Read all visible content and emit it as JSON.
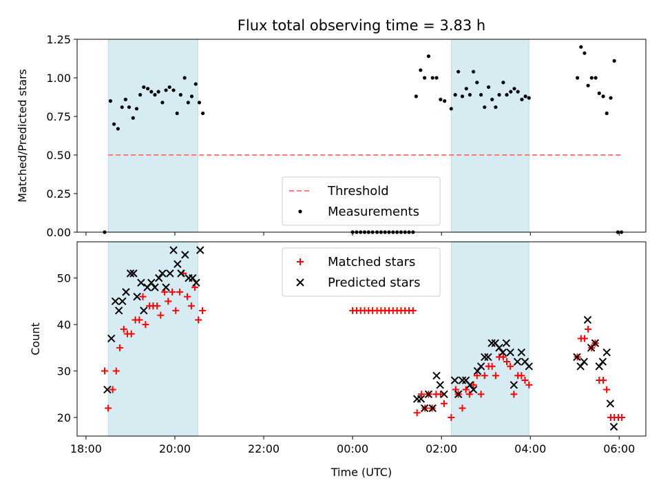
{
  "chart_data": [
    {
      "type": "scatter",
      "title": "Flux total observing time = 3.83 h",
      "xlabel": "",
      "ylabel": "Matched/Predicted stars",
      "xlim": [
        -6.2,
        6.6
      ],
      "ylim": [
        0,
        1.25
      ],
      "yticks": [
        "0.00",
        "0.25",
        "0.50",
        "0.75",
        "1.00",
        "1.25"
      ],
      "shaded_intervals": [
        [
          -5.5,
          -3.48
        ],
        [
          2.22,
          3.97
        ]
      ],
      "threshold": {
        "label": "Threshold",
        "value": 0.5,
        "x_range": [
          -5.5,
          6.05
        ],
        "color": "#ff7777"
      },
      "legend_position": "lower-center",
      "series": [
        {
          "name": "Measurements",
          "marker": "dot",
          "color": "#000000",
          "points": [
            [
              -5.58,
              0.0
            ],
            [
              -5.45,
              0.85
            ],
            [
              -5.37,
              0.7
            ],
            [
              -5.28,
              0.67
            ],
            [
              -5.19,
              0.81
            ],
            [
              -5.11,
              0.86
            ],
            [
              -5.03,
              0.81
            ],
            [
              -4.94,
              0.74
            ],
            [
              -4.86,
              0.8
            ],
            [
              -4.78,
              0.89
            ],
            [
              -4.7,
              0.94
            ],
            [
              -4.61,
              0.93
            ],
            [
              -4.53,
              0.91
            ],
            [
              -4.45,
              0.89
            ],
            [
              -4.37,
              0.91
            ],
            [
              -4.28,
              0.84
            ],
            [
              -4.2,
              0.92
            ],
            [
              -4.12,
              0.94
            ],
            [
              -4.03,
              0.92
            ],
            [
              -3.95,
              0.77
            ],
            [
              -3.87,
              0.89
            ],
            [
              -3.78,
              1.0
            ],
            [
              -3.7,
              0.84
            ],
            [
              -3.62,
              0.88
            ],
            [
              -3.53,
              0.96
            ],
            [
              -3.45,
              0.84
            ],
            [
              -3.37,
              0.77
            ],
            [
              0.0,
              0.0
            ],
            [
              0.09,
              0.0
            ],
            [
              0.18,
              0.0
            ],
            [
              0.27,
              0.0
            ],
            [
              0.36,
              0.0
            ],
            [
              0.45,
              0.0
            ],
            [
              0.55,
              0.0
            ],
            [
              0.64,
              0.0
            ],
            [
              0.73,
              0.0
            ],
            [
              0.82,
              0.0
            ],
            [
              0.91,
              0.0
            ],
            [
              1.0,
              0.0
            ],
            [
              1.09,
              0.0
            ],
            [
              1.18,
              0.0
            ],
            [
              1.27,
              0.0
            ],
            [
              1.36,
              0.0
            ],
            [
              1.43,
              0.88
            ],
            [
              1.53,
              1.05
            ],
            [
              1.62,
              1.0
            ],
            [
              1.71,
              1.14
            ],
            [
              1.8,
              1.0
            ],
            [
              1.89,
              1.0
            ],
            [
              1.98,
              0.86
            ],
            [
              2.07,
              0.85
            ],
            [
              2.22,
              0.8
            ],
            [
              2.31,
              0.89
            ],
            [
              2.38,
              1.04
            ],
            [
              2.47,
              0.88
            ],
            [
              2.56,
              0.93
            ],
            [
              2.64,
              0.89
            ],
            [
              2.72,
              1.04
            ],
            [
              2.8,
              0.97
            ],
            [
              2.89,
              0.89
            ],
            [
              2.97,
              0.81
            ],
            [
              3.06,
              0.94
            ],
            [
              3.14,
              0.86
            ],
            [
              3.22,
              0.81
            ],
            [
              3.3,
              0.89
            ],
            [
              3.39,
              0.97
            ],
            [
              3.47,
              0.89
            ],
            [
              3.56,
              0.91
            ],
            [
              3.64,
              0.93
            ],
            [
              3.72,
              0.91
            ],
            [
              3.81,
              0.86
            ],
            [
              3.89,
              0.88
            ],
            [
              3.97,
              0.87
            ],
            [
              5.06,
              1.0
            ],
            [
              5.14,
              1.2
            ],
            [
              5.22,
              1.16
            ],
            [
              5.3,
              0.95
            ],
            [
              5.38,
              1.0
            ],
            [
              5.47,
              1.0
            ],
            [
              5.55,
              0.9
            ],
            [
              5.64,
              0.88
            ],
            [
              5.72,
              0.77
            ],
            [
              5.81,
              0.87
            ],
            [
              5.89,
              1.11
            ],
            [
              5.97,
              0.0
            ],
            [
              6.05,
              0.0
            ]
          ]
        }
      ]
    },
    {
      "type": "scatter",
      "title": "",
      "xlabel": "Time (UTC)",
      "ylabel": "Count",
      "xlim": [
        -6.2,
        6.6
      ],
      "ylim": [
        16,
        57.8
      ],
      "yticks": [
        "20",
        "30",
        "40",
        "50"
      ],
      "xticks": [
        {
          "value": -6,
          "label": "18:00"
        },
        {
          "value": -4,
          "label": "20:00"
        },
        {
          "value": -2,
          "label": "22:00"
        },
        {
          "value": 0,
          "label": "00:00"
        },
        {
          "value": 2,
          "label": "02:00"
        },
        {
          "value": 4,
          "label": "04:00"
        },
        {
          "value": 6,
          "label": "06:00"
        }
      ],
      "shaded_intervals": [
        [
          -5.5,
          -3.48
        ],
        [
          2.22,
          3.97
        ]
      ],
      "legend_position": "upper-center",
      "series": [
        {
          "name": "Matched stars",
          "marker": "plus",
          "color": "#ff0000",
          "points": [
            [
              -5.58,
              30
            ],
            [
              -5.5,
              22
            ],
            [
              -5.4,
              26
            ],
            [
              -5.32,
              30
            ],
            [
              -5.24,
              35
            ],
            [
              -5.15,
              39
            ],
            [
              -5.07,
              38
            ],
            [
              -4.98,
              38
            ],
            [
              -4.89,
              41
            ],
            [
              -4.8,
              41
            ],
            [
              -4.72,
              46
            ],
            [
              -4.66,
              40
            ],
            [
              -4.57,
              44
            ],
            [
              -4.49,
              44
            ],
            [
              -4.4,
              44
            ],
            [
              -4.32,
              42
            ],
            [
              -4.23,
              47
            ],
            [
              -4.15,
              45
            ],
            [
              -4.06,
              47
            ],
            [
              -3.98,
              43
            ],
            [
              -3.89,
              47
            ],
            [
              -3.81,
              51
            ],
            [
              -3.72,
              46
            ],
            [
              -3.63,
              44
            ],
            [
              -3.55,
              48
            ],
            [
              -3.47,
              41
            ],
            [
              -3.38,
              43
            ],
            [
              0.0,
              43
            ],
            [
              0.09,
              43
            ],
            [
              0.18,
              43
            ],
            [
              0.27,
              43
            ],
            [
              0.36,
              43
            ],
            [
              0.45,
              43
            ],
            [
              0.55,
              43
            ],
            [
              0.64,
              43
            ],
            [
              0.73,
              43
            ],
            [
              0.82,
              43
            ],
            [
              0.91,
              43
            ],
            [
              1.0,
              43
            ],
            [
              1.09,
              43
            ],
            [
              1.18,
              43
            ],
            [
              1.27,
              43
            ],
            [
              1.36,
              43
            ],
            [
              1.45,
              21
            ],
            [
              1.55,
              25
            ],
            [
              1.63,
              22
            ],
            [
              1.71,
              25
            ],
            [
              1.79,
              22
            ],
            [
              1.88,
              25
            ],
            [
              1.98,
              25
            ],
            [
              2.06,
              23
            ],
            [
              2.22,
              20
            ],
            [
              2.32,
              26
            ],
            [
              2.38,
              25
            ],
            [
              2.47,
              22
            ],
            [
              2.55,
              26
            ],
            [
              2.63,
              25
            ],
            [
              2.72,
              27
            ],
            [
              2.8,
              29
            ],
            [
              2.89,
              25
            ],
            [
              2.97,
              29
            ],
            [
              3.06,
              31
            ],
            [
              3.14,
              31
            ],
            [
              3.22,
              29
            ],
            [
              3.3,
              33
            ],
            [
              3.39,
              33
            ],
            [
              3.47,
              32
            ],
            [
              3.55,
              31
            ],
            [
              3.63,
              25
            ],
            [
              3.72,
              29
            ],
            [
              3.8,
              29
            ],
            [
              3.88,
              28
            ],
            [
              3.97,
              27
            ],
            [
              5.06,
              33
            ],
            [
              5.14,
              37
            ],
            [
              5.22,
              37
            ],
            [
              5.3,
              39
            ],
            [
              5.38,
              35
            ],
            [
              5.46,
              36
            ],
            [
              5.55,
              28
            ],
            [
              5.64,
              28
            ],
            [
              5.72,
              26
            ],
            [
              5.81,
              20
            ],
            [
              5.89,
              20
            ],
            [
              5.98,
              20
            ],
            [
              6.06,
              20
            ]
          ]
        },
        {
          "name": "Predicted stars",
          "marker": "cross",
          "color": "#000000",
          "points": [
            [
              -5.52,
              26
            ],
            [
              -5.43,
              37
            ],
            [
              -5.34,
              45
            ],
            [
              -5.26,
              43
            ],
            [
              -5.18,
              45
            ],
            [
              -5.1,
              47
            ],
            [
              -5.0,
              51
            ],
            [
              -4.93,
              51
            ],
            [
              -4.85,
              46
            ],
            [
              -4.76,
              49
            ],
            [
              -4.7,
              43
            ],
            [
              -4.62,
              48
            ],
            [
              -4.53,
              49
            ],
            [
              -4.45,
              48
            ],
            [
              -4.36,
              50
            ],
            [
              -4.28,
              51
            ],
            [
              -4.2,
              48
            ],
            [
              -4.11,
              51
            ],
            [
              -4.03,
              56
            ],
            [
              -3.94,
              53
            ],
            [
              -3.86,
              51
            ],
            [
              -3.77,
              55
            ],
            [
              -3.69,
              50
            ],
            [
              -3.6,
              50
            ],
            [
              -3.52,
              49
            ],
            [
              -3.43,
              56
            ],
            [
              1.45,
              24
            ],
            [
              1.54,
              24
            ],
            [
              1.62,
              22
            ],
            [
              1.71,
              25
            ],
            [
              1.8,
              22
            ],
            [
              1.89,
              29
            ],
            [
              1.97,
              27
            ],
            [
              2.06,
              25
            ],
            [
              2.3,
              28
            ],
            [
              2.38,
              25
            ],
            [
              2.47,
              28
            ],
            [
              2.55,
              28
            ],
            [
              2.64,
              27
            ],
            [
              2.72,
              26
            ],
            [
              2.81,
              30
            ],
            [
              2.89,
              31
            ],
            [
              2.97,
              33
            ],
            [
              3.05,
              33
            ],
            [
              3.13,
              36
            ],
            [
              3.21,
              36
            ],
            [
              3.3,
              35
            ],
            [
              3.38,
              34
            ],
            [
              3.46,
              36
            ],
            [
              3.55,
              34
            ],
            [
              3.63,
              27
            ],
            [
              3.71,
              32
            ],
            [
              3.8,
              34
            ],
            [
              3.88,
              32
            ],
            [
              3.97,
              31
            ],
            [
              5.05,
              33
            ],
            [
              5.13,
              31
            ],
            [
              5.21,
              32
            ],
            [
              5.29,
              41
            ],
            [
              5.37,
              35
            ],
            [
              5.46,
              36
            ],
            [
              5.55,
              31
            ],
            [
              5.63,
              32
            ],
            [
              5.72,
              34
            ],
            [
              5.8,
              23
            ],
            [
              5.88,
              18
            ]
          ]
        }
      ]
    }
  ]
}
